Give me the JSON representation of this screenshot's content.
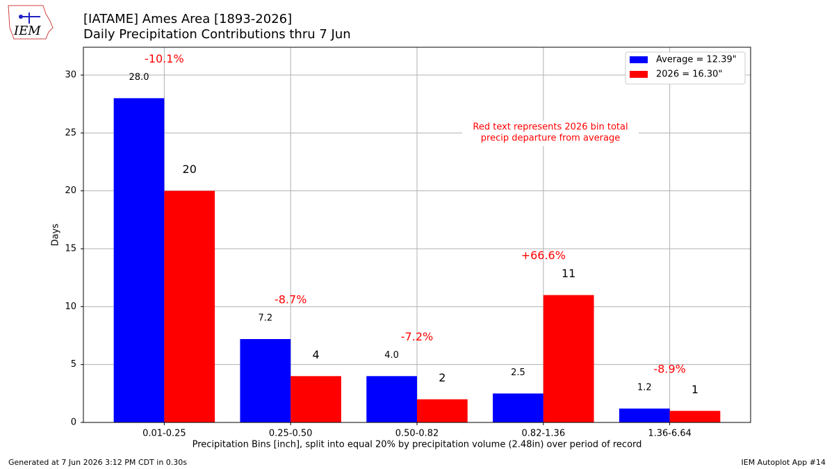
{
  "chart_data": {
    "type": "bar",
    "title": "[IATAME] Ames Area [1893-2026]",
    "subtitle": "Daily Precipitation Contributions thru 7 Jun",
    "x_label": "Precipitation Bins [inch], split into equal 20% by precipitation volume (2.48in) over period of record",
    "y_label": "Days",
    "categories": [
      "0.01-0.25",
      "0.25-0.50",
      "0.50-0.82",
      "0.82-1.36",
      "1.36-6.64"
    ],
    "series": [
      {
        "name": "Average = 12.39\"",
        "color": "#0000ff",
        "values": [
          28.0,
          7.2,
          4.0,
          2.5,
          1.2
        ],
        "value_labels": [
          "28.0",
          "7.2",
          "4.0",
          "2.5",
          "1.2"
        ]
      },
      {
        "name": "2026 = 16.30\"",
        "color": "#ff0000",
        "values": [
          20,
          4,
          2,
          11,
          1
        ]
      }
    ],
    "departure_labels": [
      "-10.1%",
      "-8.7%",
      "-7.2%",
      "+66.6%",
      "-8.9%"
    ],
    "note": [
      "Red text represents 2026 bin total",
      "precip departure from average"
    ],
    "ylim": [
      0,
      32.4
    ],
    "yticks": [
      0,
      5,
      10,
      15,
      20,
      25,
      30
    ],
    "grid": true,
    "legend": "upper right",
    "logo": "IEM",
    "footer_left": "Generated at 7 Jun 2026 3:12 PM CDT in 0.30s",
    "footer_right": "IEM Autoplot App #14"
  }
}
